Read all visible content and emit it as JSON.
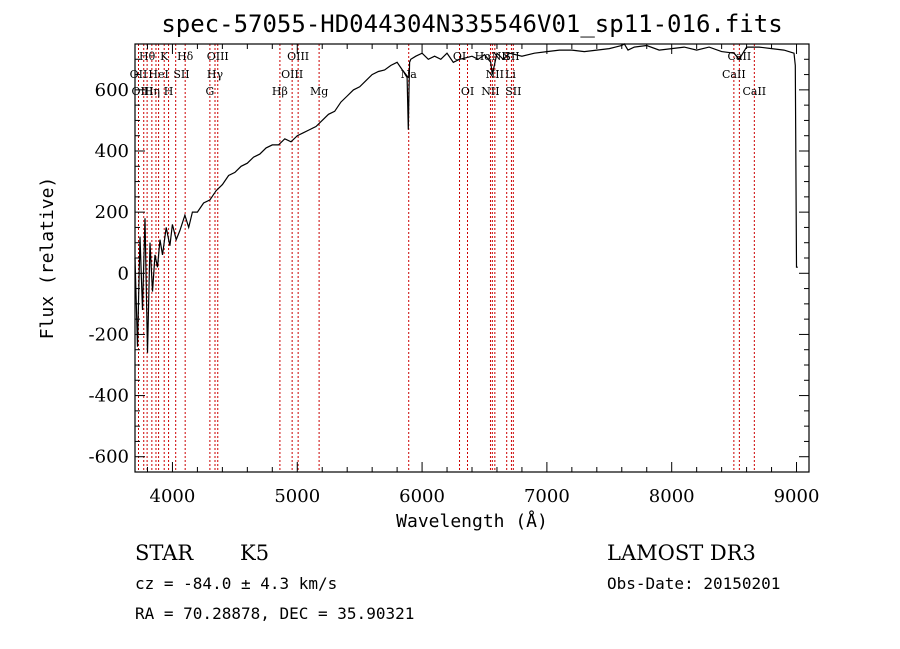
{
  "chart_data": {
    "type": "line",
    "title": "spec-57055-HD044304N335546V01_sp11-016.fits",
    "xlabel": "Wavelength (Å)",
    "ylabel": "Flux (relative)",
    "xlim": [
      3700,
      9100
    ],
    "ylim": [
      -650,
      750
    ],
    "x_ticks": [
      4000,
      5000,
      6000,
      7000,
      8000,
      9000
    ],
    "y_ticks": [
      -600,
      -400,
      -200,
      0,
      200,
      400,
      600
    ],
    "grid": false,
    "series": [
      {
        "x": [
          3700,
          3720,
          3740,
          3760,
          3780,
          3800,
          3820,
          3840,
          3860,
          3880,
          3900,
          3920,
          3950,
          3980,
          4000,
          4030,
          4060,
          4100,
          4130,
          4160,
          4200,
          4250,
          4300,
          4350,
          4400,
          4450,
          4500,
          4550,
          4600,
          4650,
          4700,
          4750,
          4800,
          4850,
          4900,
          4950,
          5000,
          5050,
          5100,
          5150,
          5200,
          5250,
          5300,
          5350,
          5400,
          5450,
          5500,
          5550,
          5600,
          5650,
          5700,
          5750,
          5800,
          5850,
          5880,
          5890,
          5895,
          5900,
          5910,
          5950,
          6000,
          6050,
          6100,
          6150,
          6200,
          6250,
          6300,
          6350,
          6400,
          6450,
          6500,
          6550,
          6563,
          6600,
          6650,
          6700,
          6750,
          6800,
          6900,
          7000,
          7100,
          7200,
          7300,
          7400,
          7500,
          7550,
          7600,
          7620,
          7650,
          7700,
          7800,
          7900,
          8000,
          8100,
          8200,
          8300,
          8400,
          8500,
          8540,
          8600,
          8700,
          8800,
          8900,
          8980,
          8990,
          9000,
          9010
        ],
        "y": [
          50,
          -240,
          120,
          -120,
          180,
          -260,
          100,
          -60,
          60,
          20,
          110,
          60,
          150,
          90,
          160,
          110,
          140,
          190,
          150,
          200,
          200,
          230,
          240,
          270,
          290,
          320,
          330,
          350,
          360,
          380,
          390,
          410,
          420,
          420,
          440,
          430,
          450,
          460,
          470,
          480,
          500,
          520,
          530,
          560,
          580,
          600,
          610,
          630,
          650,
          660,
          665,
          680,
          690,
          660,
          640,
          470,
          600,
          690,
          700,
          710,
          720,
          700,
          710,
          700,
          720,
          690,
          700,
          705,
          710,
          700,
          715,
          690,
          650,
          720,
          700,
          720,
          715,
          710,
          720,
          725,
          730,
          730,
          725,
          730,
          735,
          740,
          745,
          750,
          730,
          740,
          745,
          730,
          735,
          740,
          730,
          740,
          725,
          720,
          700,
          740,
          740,
          735,
          730,
          720,
          680,
          20,
          20
        ]
      }
    ],
    "line_marks": {
      "wavelengths": [
        3728,
        3770,
        3797,
        3835,
        3868,
        3889,
        3934,
        3969,
        4026,
        4102,
        4300,
        4341,
        4363,
        4861,
        4959,
        5007,
        5175,
        5893,
        6300,
        6364,
        6548,
        6563,
        6583,
        6678,
        6716,
        6731,
        8498,
        8542,
        8662
      ],
      "labels_row1": [
        {
          "text": "Hθ",
          "w": 3797
        },
        {
          "text": "K",
          "w": 3934
        },
        {
          "text": "Hδ",
          "w": 4102
        },
        {
          "text": "OIII",
          "w": 4363
        },
        {
          "text": "OIII",
          "w": 5007
        },
        {
          "text": "OI",
          "w": 6300
        },
        {
          "text": "HαNII",
          "w": 6563
        },
        {
          "text": "SII",
          "w": 6716
        },
        {
          "text": "CaII",
          "w": 8542
        }
      ],
      "labels_row2": [
        {
          "text": "OII",
          "w": 3728
        },
        {
          "text": "HeI",
          "w": 3889
        },
        {
          "text": "SII",
          "w": 4072
        },
        {
          "text": "Hγ",
          "w": 4341
        },
        {
          "text": "OIII",
          "w": 4959
        },
        {
          "text": "Na",
          "w": 5893
        },
        {
          "text": "NII",
          "w": 6583
        },
        {
          "text": "Li",
          "w": 6708
        },
        {
          "text": "CaII",
          "w": 8498
        }
      ],
      "labels_row3": [
        {
          "text": "OIII",
          "w": 3760
        },
        {
          "text": "Hη",
          "w": 3835
        },
        {
          "text": "H",
          "w": 3969
        },
        {
          "text": "G",
          "w": 4300
        },
        {
          "text": "Hβ",
          "w": 4861
        },
        {
          "text": "Mg",
          "w": 5175
        },
        {
          "text": "OI",
          "w": 6364
        },
        {
          "text": "NII",
          "w": 6548
        },
        {
          "text": "SII",
          "w": 6731
        },
        {
          "text": "CaII",
          "w": 8662
        }
      ]
    },
    "line_color": "#000000",
    "mark_color": "#cc0000"
  },
  "info": {
    "class": "STAR",
    "subclass": "K5",
    "survey": "LAMOST DR3",
    "cz": "cz = -84.0 ± 4.3 km/s",
    "obs_date": "Obs-Date: 20150201",
    "radec": "RA =  70.28878, DEC =  35.90321"
  }
}
